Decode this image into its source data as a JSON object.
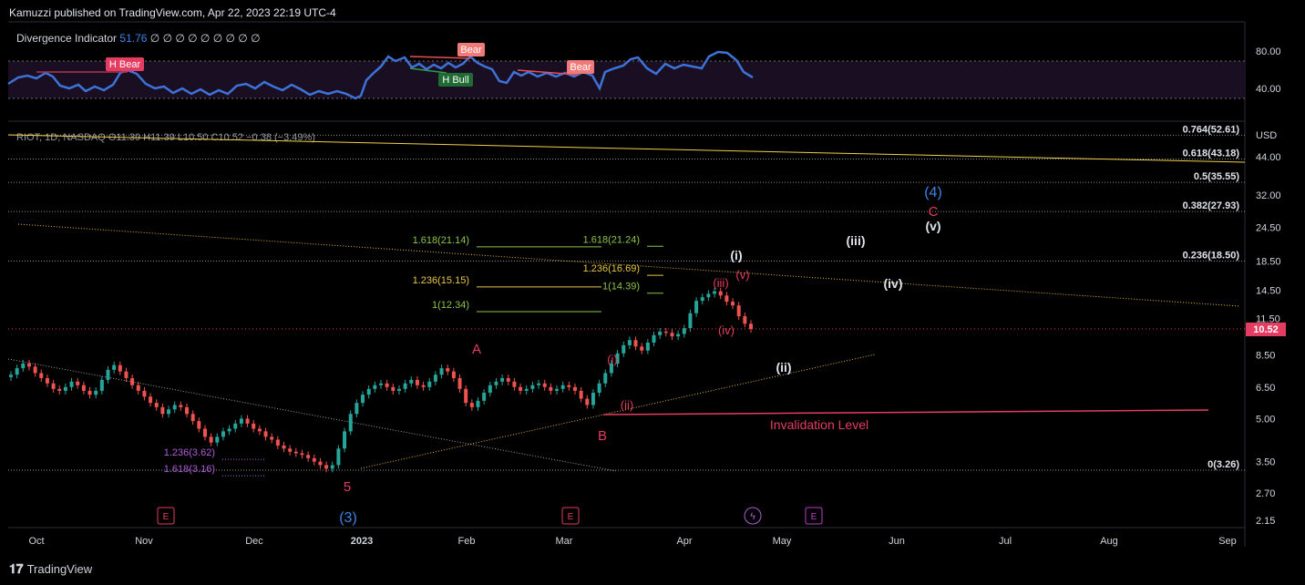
{
  "header": {
    "published": "Kamuzzi published on TradingView.com, Apr 22, 2023 22:19 UTC-4"
  },
  "indicator": {
    "name": "Divergence Indicator",
    "value": "51.76",
    "placeholders": "∅ ∅ ∅ ∅ ∅ ∅ ∅ ∅ ∅",
    "axis_ticks": [
      "80.00",
      "40.00"
    ],
    "labels": [
      "H Bear",
      "Bear",
      "H Bull",
      "Bear"
    ],
    "line_color": "#3d73d9"
  },
  "symbol": {
    "text": "RIOT, 1D, NASDAQ  O11.39  H11.39  L10.50  C10.52  −0.38 (−3.49%)",
    "currency": "USD"
  },
  "chart_data": {
    "type": "candlestick",
    "title": "RIOT, 1D, NASDAQ",
    "scale": "log",
    "last_price": "10.52",
    "price_ticks": [
      "44.00",
      "32.00",
      "24.50",
      "18.50",
      "14.50",
      "11.50",
      "8.50",
      "6.50",
      "5.00",
      "3.50",
      "2.70",
      "2.15"
    ],
    "price_tick_values": [
      44,
      32,
      24.5,
      18.5,
      14.5,
      11.5,
      8.5,
      6.5,
      5.0,
      3.5,
      2.7,
      2.15
    ],
    "time_ticks": [
      "Oct",
      "Nov",
      "Dec",
      "2023",
      "Feb",
      "Mar",
      "Apr",
      "May",
      "Jun",
      "Jul",
      "Aug",
      "Sep"
    ],
    "fib_retracement": [
      {
        "label": "0.764(52.61)",
        "value": 52.61
      },
      {
        "label": "0.618(43.18)",
        "value": 43.18
      },
      {
        "label": "0.5(35.55)",
        "value": 35.55
      },
      {
        "label": "0.382(27.93)",
        "value": 27.93
      },
      {
        "label": "0.236(18.50)",
        "value": 18.5
      },
      {
        "label": "0(3.26)",
        "value": 3.26
      }
    ],
    "fib_extensions": [
      {
        "label": "1.618(21.14)",
        "value": 21.14
      },
      {
        "label": "1.236(15.15)",
        "value": 15.15
      },
      {
        "label": "1(12.34)",
        "value": 12.34
      },
      {
        "label": "1.618(21.24)",
        "value": 21.24
      },
      {
        "label": "1.236(16.69)",
        "value": 16.69
      },
      {
        "label": "1(14.39)",
        "value": 14.39
      },
      {
        "label": "1.236(3.62)",
        "value": 3.62
      },
      {
        "label": "1.618(3.16)",
        "value": 3.16
      }
    ],
    "wave_labels": [
      "5",
      "(3)",
      "A",
      "B",
      "C",
      "(4)",
      "(i)",
      "(ii)",
      "(iii)",
      "(iv)",
      "(v)",
      "(i)",
      "(ii)",
      "(iii)",
      "(iv)",
      "(v)"
    ],
    "annotations": [
      "Invalidation Level"
    ],
    "closes": [
      7.2,
      7.6,
      7.9,
      7.7,
      7.3,
      7.0,
      6.7,
      6.4,
      6.3,
      6.5,
      6.8,
      6.6,
      6.3,
      6.1,
      6.3,
      6.9,
      7.5,
      7.8,
      7.4,
      7.0,
      6.6,
      6.3,
      6.0,
      5.7,
      5.5,
      5.2,
      5.4,
      5.6,
      5.5,
      5.2,
      4.9,
      4.6,
      4.3,
      4.1,
      4.3,
      4.5,
      4.6,
      4.8,
      5.0,
      4.8,
      4.6,
      4.5,
      4.3,
      4.2,
      4.0,
      3.9,
      3.8,
      3.75,
      3.7,
      3.6,
      3.5,
      3.4,
      3.3,
      3.4,
      3.9,
      4.5,
      5.2,
      5.7,
      6.1,
      6.4,
      6.6,
      6.7,
      6.5,
      6.3,
      6.4,
      6.7,
      6.9,
      6.6,
      6.5,
      6.8,
      7.2,
      7.6,
      7.4,
      7.0,
      6.4,
      5.7,
      5.5,
      5.8,
      6.2,
      6.6,
      6.8,
      7.0,
      6.8,
      6.5,
      6.3,
      6.4,
      6.6,
      6.7,
      6.5,
      6.3,
      6.4,
      6.6,
      6.5,
      6.3,
      5.9,
      5.6,
      6.2,
      6.7,
      7.3,
      7.9,
      8.6,
      9.2,
      9.6,
      9.1,
      8.8,
      9.4,
      10.0,
      10.3,
      10.2,
      9.9,
      10.1,
      10.6,
      12.0,
      13.3,
      13.7,
      14.1,
      14.4,
      13.9,
      13.2,
      12.8,
      11.7,
      11.0,
      10.52
    ]
  },
  "footer": {
    "brand": "TradingView"
  }
}
